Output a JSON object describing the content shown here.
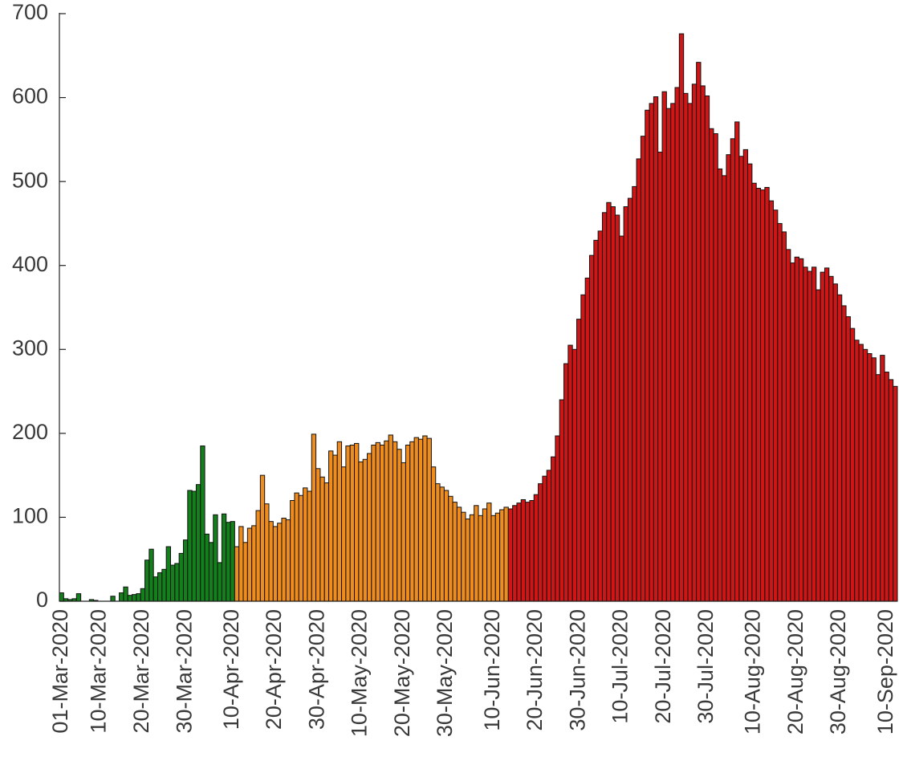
{
  "chart_data": {
    "type": "bar",
    "categories": [
      "01-Mar-2020",
      null,
      null,
      null,
      null,
      null,
      null,
      null,
      null,
      "10-Mar-2020",
      null,
      null,
      null,
      null,
      null,
      null,
      null,
      null,
      null,
      "20-Mar-2020",
      null,
      null,
      null,
      null,
      null,
      null,
      null,
      null,
      null,
      "30-Mar-2020",
      null,
      null,
      null,
      null,
      null,
      null,
      null,
      null,
      null,
      null,
      "10-Apr-2020",
      null,
      null,
      null,
      null,
      null,
      null,
      null,
      null,
      null,
      "20-Apr-2020",
      null,
      null,
      null,
      null,
      null,
      null,
      null,
      null,
      null,
      "30-Apr-2020",
      null,
      null,
      null,
      null,
      null,
      null,
      null,
      null,
      null,
      "10-May-2020",
      null,
      null,
      null,
      null,
      null,
      null,
      null,
      null,
      null,
      "20-May-2020",
      null,
      null,
      null,
      null,
      null,
      null,
      null,
      null,
      null,
      "30-May-2020",
      null,
      null,
      null,
      null,
      null,
      null,
      null,
      null,
      null,
      null,
      "10-Jun-2020",
      null,
      null,
      null,
      null,
      null,
      null,
      null,
      null,
      null,
      "20-Jun-2020",
      null,
      null,
      null,
      null,
      null,
      null,
      null,
      null,
      null,
      "30-Jun-2020",
      null,
      null,
      null,
      null,
      null,
      null,
      null,
      null,
      null,
      "10-Jul-2020",
      null,
      null,
      null,
      null,
      null,
      null,
      null,
      null,
      null,
      "20-Jul-2020",
      null,
      null,
      null,
      null,
      null,
      null,
      null,
      null,
      null,
      "30-Jul-2020",
      null,
      null,
      null,
      null,
      null,
      null,
      null,
      null,
      null,
      null,
      "10-Aug-2020",
      null,
      null,
      null,
      null,
      null,
      null,
      null,
      null,
      null,
      "20-Aug-2020",
      null,
      null,
      null,
      null,
      null,
      null,
      null,
      null,
      null,
      "30-Aug-2020",
      null,
      null,
      null,
      null,
      null,
      null,
      null,
      null,
      null,
      null,
      "10-Sep-2020",
      null,
      null
    ],
    "series": [
      {
        "color": "#13801c",
        "values": [
          10,
          3,
          2,
          3,
          9,
          0,
          0,
          2,
          1,
          0,
          0,
          0,
          6,
          0,
          10,
          17,
          7,
          8,
          9,
          15,
          49,
          62,
          29,
          34,
          38,
          65,
          43,
          45,
          57,
          73,
          132,
          131,
          139,
          185,
          80,
          70,
          103,
          46,
          104,
          94,
          95,
          null,
          null,
          null,
          null,
          null,
          null,
          null,
          null,
          null,
          null,
          null,
          null,
          null,
          null,
          null,
          null,
          null,
          null,
          null,
          null,
          null,
          null,
          null,
          null,
          null,
          null,
          null,
          null,
          null,
          null,
          null,
          null,
          null,
          null,
          null,
          null,
          null,
          null,
          null,
          null,
          null,
          null,
          null,
          null,
          null,
          null,
          null,
          null,
          null,
          null,
          null,
          null,
          null,
          null,
          null,
          null,
          null,
          null,
          null,
          null,
          null,
          null,
          null,
          null,
          null,
          null,
          null,
          null,
          null,
          null,
          null,
          null,
          null,
          null,
          null,
          null,
          null,
          null,
          null,
          null,
          null,
          null,
          null,
          null,
          null,
          null,
          null,
          null,
          null,
          null,
          null,
          null,
          null,
          null,
          null,
          null,
          null,
          null,
          null,
          null,
          null,
          null,
          null,
          null,
          null,
          null,
          null,
          null,
          null,
          null,
          null,
          null,
          null,
          null,
          null,
          null,
          null,
          null,
          null,
          null,
          null,
          null,
          null,
          null,
          null,
          null,
          null,
          null,
          null,
          null,
          null,
          null,
          null,
          null,
          null,
          null,
          null,
          null,
          null,
          null,
          null,
          null,
          null,
          null,
          null,
          null,
          null,
          null,
          null,
          null,
          null,
          null,
          null,
          null,
          null
        ]
      },
      {
        "color": "#ef8c1e",
        "values": [
          null,
          null,
          null,
          null,
          null,
          null,
          null,
          null,
          null,
          null,
          null,
          null,
          null,
          null,
          null,
          null,
          null,
          null,
          null,
          null,
          null,
          null,
          null,
          null,
          null,
          null,
          null,
          null,
          null,
          null,
          null,
          null,
          null,
          null,
          null,
          null,
          null,
          null,
          null,
          null,
          null,
          65,
          89,
          70,
          87,
          90,
          108,
          150,
          116,
          95,
          89,
          93,
          99,
          97,
          120,
          129,
          126,
          135,
          131,
          199,
          158,
          148,
          141,
          179,
          174,
          190,
          160,
          185,
          186,
          188,
          166,
          169,
          176,
          186,
          189,
          186,
          191,
          198,
          190,
          181,
          165,
          186,
          190,
          195,
          193,
          197,
          194,
          160,
          140,
          136,
          132,
          125,
          118,
          112,
          106,
          98,
          103,
          114,
          102,
          110,
          117,
          102,
          105,
          109,
          112,
          null,
          null,
          null,
          null,
          null,
          null,
          null,
          null,
          null,
          null,
          null,
          null,
          null,
          null,
          null,
          null,
          null,
          null,
          null,
          null,
          null,
          null,
          null,
          null,
          null,
          null,
          null,
          null,
          null,
          null,
          null,
          null,
          null,
          null,
          null,
          null,
          null,
          null,
          null,
          null,
          null,
          null,
          null,
          null,
          null,
          null,
          null,
          null,
          null,
          null,
          null,
          null,
          null,
          null,
          null,
          null,
          null,
          null,
          null,
          null,
          null,
          null,
          null,
          null,
          null,
          null,
          null,
          null,
          null,
          null,
          null,
          null,
          null,
          null,
          null,
          null,
          null,
          null,
          null,
          null,
          null,
          null,
          null,
          null,
          null,
          null,
          null,
          null,
          null,
          null,
          null
        ]
      },
      {
        "color": "#cf1515",
        "values": [
          null,
          null,
          null,
          null,
          null,
          null,
          null,
          null,
          null,
          null,
          null,
          null,
          null,
          null,
          null,
          null,
          null,
          null,
          null,
          null,
          null,
          null,
          null,
          null,
          null,
          null,
          null,
          null,
          null,
          null,
          null,
          null,
          null,
          null,
          null,
          null,
          null,
          null,
          null,
          null,
          null,
          null,
          null,
          null,
          null,
          null,
          null,
          null,
          null,
          null,
          null,
          null,
          null,
          null,
          null,
          null,
          null,
          null,
          null,
          null,
          null,
          null,
          null,
          null,
          null,
          null,
          null,
          null,
          null,
          null,
          null,
          null,
          null,
          null,
          null,
          null,
          null,
          null,
          null,
          null,
          null,
          null,
          null,
          null,
          null,
          null,
          null,
          null,
          null,
          null,
          null,
          null,
          null,
          null,
          null,
          null,
          null,
          null,
          null,
          null,
          null,
          null,
          null,
          null,
          null,
          110,
          114,
          117,
          121,
          118,
          120,
          127,
          140,
          149,
          156,
          172,
          197,
          240,
          283,
          305,
          300,
          336,
          365,
          385,
          412,
          430,
          441,
          463,
          475,
          470,
          460,
          435,
          470,
          480,
          494,
          527,
          554,
          585,
          593,
          601,
          535,
          607,
          587,
          593,
          612,
          676,
          605,
          593,
          616,
          642,
          614,
          602,
          563,
          557,
          515,
          507,
          532,
          551,
          571,
          530,
          538,
          521,
          498,
          492,
          490,
          493,
          477,
          466,
          450,
          440,
          419,
          403,
          410,
          408,
          398,
          393,
          398,
          371,
          392,
          397,
          387,
          378,
          365,
          352,
          339,
          325,
          311,
          306,
          300,
          295,
          290,
          270,
          293,
          273,
          264,
          256
        ]
      }
    ],
    "ylim": [
      0,
      700
    ],
    "yticks": [
      0,
      100,
      200,
      300,
      400,
      500,
      600,
      700
    ]
  }
}
